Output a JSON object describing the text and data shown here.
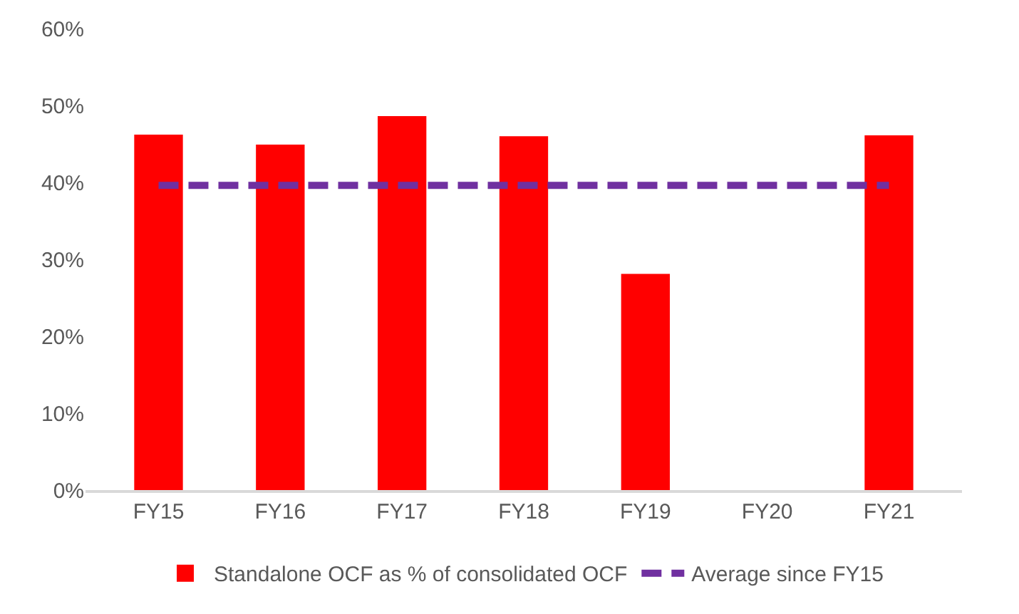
{
  "chart_data": {
    "type": "bar",
    "categories": [
      "FY15",
      "FY16",
      "FY17",
      "FY18",
      "FY19",
      "FY20",
      "FY21"
    ],
    "series": [
      {
        "name": "Standalone OCF as % of consolidated OCF",
        "color": "#ff0000",
        "values": [
          46.2,
          44.9,
          48.6,
          46.0,
          28.1,
          0,
          46.1
        ]
      },
      {
        "name": "Average since FY15",
        "type": "line",
        "color": "#7030a0",
        "line_style": "dashed",
        "marker": "none",
        "values": [
          39.6,
          39.6,
          39.6,
          39.6,
          39.6,
          39.6,
          39.6
        ]
      }
    ],
    "ylim": [
      0,
      60
    ],
    "yticks": [
      {
        "value": 0,
        "label": "0%"
      },
      {
        "value": 10,
        "label": "10%"
      },
      {
        "value": 20,
        "label": "20%"
      },
      {
        "value": 30,
        "label": "30%"
      },
      {
        "value": 40,
        "label": "40%"
      },
      {
        "value": 50,
        "label": "50%"
      },
      {
        "value": 60,
        "label": "60%"
      }
    ],
    "legend": "bottom"
  }
}
